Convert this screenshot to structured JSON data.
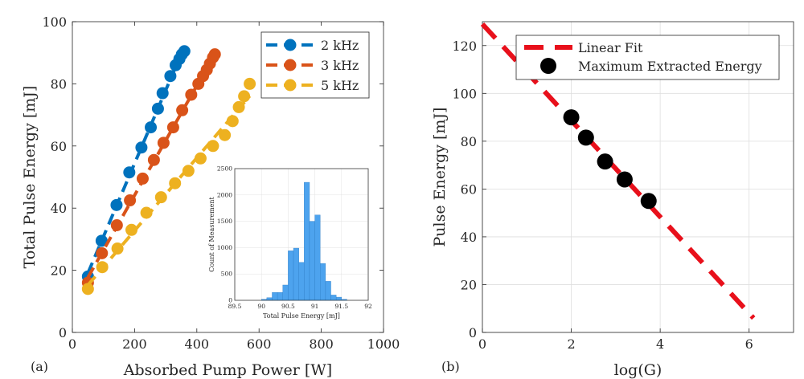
{
  "chart_data": [
    {
      "panel_label": "(a)",
      "type": "scatter",
      "title": "",
      "xlabel": "Absorbed Pump Power [W]",
      "ylabel": "Total Pulse Energy [mJ]",
      "xlim": [
        0,
        1000
      ],
      "ylim": [
        0,
        100
      ],
      "xticks": [
        0,
        200,
        400,
        600,
        800,
        1000
      ],
      "yticks": [
        0,
        20,
        40,
        60,
        80,
        100
      ],
      "grid": false,
      "legend_position": "top-right",
      "series": [
        {
          "name": "2 kHz",
          "color": "#0072BD",
          "x": [
            50,
            94,
            142,
            183,
            222,
            252,
            275,
            290,
            315,
            332,
            344,
            352,
            360
          ],
          "y": [
            18,
            29.5,
            41,
            51.5,
            59.5,
            66,
            72,
            77,
            82.5,
            86,
            88,
            89.5,
            90.5
          ]
        },
        {
          "name": "3 kHz",
          "color": "#D95319",
          "x": [
            50,
            95,
            143,
            185,
            226,
            262,
            293,
            324,
            353,
            382,
            405,
            420,
            432,
            442,
            452,
            458
          ],
          "y": [
            16,
            25.5,
            34.5,
            42.5,
            49.5,
            55.5,
            61,
            66,
            71.5,
            76.5,
            80,
            82.5,
            84.5,
            86.5,
            88.5,
            89.5
          ]
        },
        {
          "name": "5 kHz",
          "color": "#EDB120",
          "x": [
            50,
            96,
            145,
            190,
            238,
            285,
            330,
            373,
            412,
            452,
            490,
            515,
            535,
            552,
            570
          ],
          "y": [
            14,
            21,
            27,
            33,
            38.5,
            43.5,
            48,
            52,
            56,
            60,
            63.5,
            68,
            72.5,
            76,
            80
          ]
        }
      ],
      "inset": {
        "type": "histogram",
        "xlabel": "Total Pulse Energy [mJ]",
        "ylabel": "Count of Measurement",
        "xlim": [
          89.5,
          92
        ],
        "ylim": [
          0,
          2500
        ],
        "xticks": [
          "89.5",
          "90",
          "90.5",
          "91",
          "91.5",
          "92"
        ],
        "yticks": [
          "0",
          "500",
          "1000",
          "1500",
          "2000",
          "2500"
        ],
        "bar_color": "#4DA3EE",
        "bins": [
          {
            "x0": 90.0,
            "x1": 90.1,
            "count": 20
          },
          {
            "x0": 90.1,
            "x1": 90.2,
            "count": 50
          },
          {
            "x0": 90.2,
            "x1": 90.3,
            "count": 150
          },
          {
            "x0": 90.3,
            "x1": 90.4,
            "count": 150
          },
          {
            "x0": 90.4,
            "x1": 90.5,
            "count": 290
          },
          {
            "x0": 90.5,
            "x1": 90.6,
            "count": 940
          },
          {
            "x0": 90.6,
            "x1": 90.7,
            "count": 990
          },
          {
            "x0": 90.7,
            "x1": 90.8,
            "count": 720
          },
          {
            "x0": 90.8,
            "x1": 90.9,
            "count": 2240
          },
          {
            "x0": 90.9,
            "x1": 91.0,
            "count": 1500
          },
          {
            "x0": 91.0,
            "x1": 91.1,
            "count": 1620
          },
          {
            "x0": 91.1,
            "x1": 91.2,
            "count": 700
          },
          {
            "x0": 91.2,
            "x1": 91.3,
            "count": 360
          },
          {
            "x0": 91.3,
            "x1": 91.4,
            "count": 100
          },
          {
            "x0": 91.4,
            "x1": 91.5,
            "count": 60
          },
          {
            "x0": 91.5,
            "x1": 91.6,
            "count": 20
          }
        ]
      }
    },
    {
      "panel_label": "(b)",
      "type": "scatter",
      "title": "",
      "xlabel": "log(G)",
      "ylabel": "Pulse Energy [mJ]",
      "xlim": [
        0,
        7
      ],
      "ylim": [
        0,
        130
      ],
      "xticks": [
        0,
        2,
        4,
        6
      ],
      "yticks": [
        0,
        20,
        40,
        60,
        80,
        100,
        120
      ],
      "grid": true,
      "legend_position": "top-right",
      "series": [
        {
          "name": "Linear Fit",
          "kind": "line",
          "color": "#E8101B",
          "x": [
            0,
            6.1
          ],
          "y": [
            129,
            6
          ]
        },
        {
          "name": "Maximum Extracted Energy",
          "kind": "points",
          "color": "#000000",
          "x": [
            2.0,
            2.33,
            2.76,
            3.2,
            3.74
          ],
          "y": [
            90,
            81.5,
            71.5,
            64,
            55
          ]
        }
      ]
    }
  ]
}
